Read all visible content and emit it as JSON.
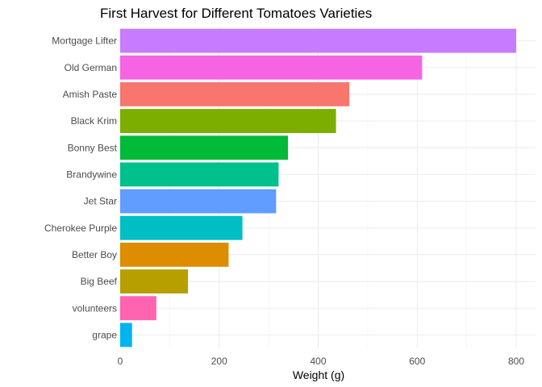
{
  "chart_data": {
    "type": "bar",
    "orientation": "horizontal",
    "title": "First Harvest for Different Tomatoes Varieties",
    "xlabel": "Weight (g)",
    "ylabel": "",
    "xlim": [
      0,
      800
    ],
    "x_ticks": [
      0,
      200,
      400,
      600,
      800
    ],
    "grid": true,
    "legend": "none",
    "categories": [
      "Mortgage Lifter",
      "Old German",
      "Amish Paste",
      "Black Krim",
      "Bonny Best",
      "Brandywine",
      "Jet Star",
      "Cherokee Purple",
      "Better Boy",
      "Big Beef",
      "volunteers",
      "grape"
    ],
    "values": [
      800,
      610,
      463,
      436,
      339,
      320,
      315,
      247,
      219,
      137,
      73,
      24
    ],
    "colors": [
      "#C77CFF",
      "#F564E3",
      "#F8766D",
      "#7CAE00",
      "#00BA38",
      "#00C08B",
      "#619CFF",
      "#00BFC4",
      "#DE8C00",
      "#B79F00",
      "#FF64B0",
      "#00B4F0"
    ]
  }
}
